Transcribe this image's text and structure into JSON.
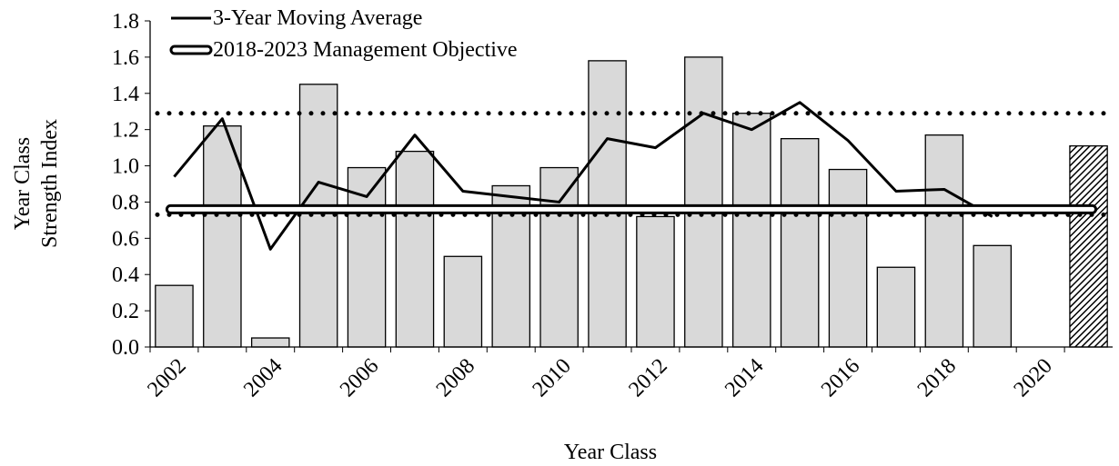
{
  "chart_data": {
    "type": "bar",
    "x_label": "Year Class",
    "y_label": [
      "Year Class",
      "Strength Index"
    ],
    "categories": [
      "2002",
      null,
      "2004",
      null,
      "2006",
      null,
      "2008",
      null,
      "2010",
      null,
      "2012",
      null,
      "2014",
      null,
      "2016",
      null,
      "2018",
      null,
      "2020",
      null
    ],
    "values": [
      0.34,
      1.22,
      0.05,
      1.45,
      0.99,
      1.08,
      0.5,
      0.89,
      0.99,
      1.58,
      0.72,
      1.6,
      1.29,
      1.15,
      0.98,
      0.44,
      1.17,
      0.56,
      null,
      1.11
    ],
    "color": "#d9d9d9",
    "hatched_index": 19,
    "series": [
      {
        "name": "3-Year Moving Average",
        "type": "line",
        "color": "#000000",
        "values": [
          0.94,
          1.26,
          0.54,
          0.91,
          0.83,
          1.17,
          0.86,
          0.83,
          0.8,
          1.15,
          1.1,
          1.29,
          1.2,
          1.35,
          1.14,
          0.86,
          0.87,
          0.72,
          null,
          null
        ]
      },
      {
        "name": "2018-2023 Management Objective",
        "type": "double-line",
        "color": "#000000",
        "value": 0.76
      }
    ],
    "reference_lines": [
      {
        "value": 1.29,
        "style": "dotted"
      },
      {
        "value": 0.73,
        "style": "dotted"
      }
    ],
    "ylim": [
      0,
      1.8
    ],
    "yticks": [
      {
        "value": 0,
        "label": "0.0"
      },
      0.2,
      0.4,
      0.6,
      0.8,
      {
        "value": 1,
        "label": "1.0"
      },
      1.2,
      1.4,
      1.6,
      1.8
    ],
    "legend": "top-left"
  }
}
